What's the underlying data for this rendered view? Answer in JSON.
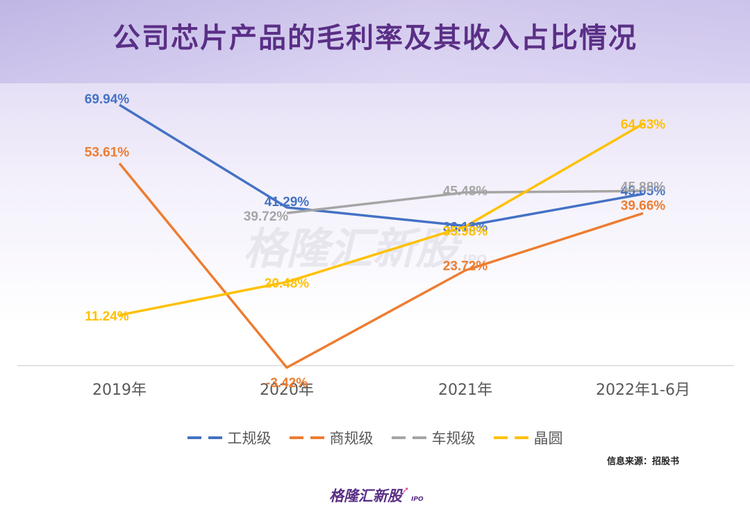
{
  "title": "公司芯片产品的毛利率及其收入占比情况",
  "watermark": {
    "text": "格隆汇新股",
    "ipo": "IPO"
  },
  "source": "信息来源：招股书",
  "logo": {
    "text": "格隆汇新股",
    "ipo": "IPO"
  },
  "chart_data": {
    "type": "line",
    "title": "公司芯片产品的毛利率及其收入占比情况",
    "categories": [
      "2019年",
      "2020年",
      "2021年",
      "2022年1-6月"
    ],
    "ylim": [
      -5,
      75
    ],
    "grid": false,
    "legend_position": "bottom",
    "series": [
      {
        "name": "工规级",
        "color": "#4472c4",
        "values": [
          69.94,
          41.29,
          36.13,
          45.05
        ],
        "labels": [
          "69.94%",
          "41.29%",
          "36.13%",
          "45.05%"
        ]
      },
      {
        "name": "商规级",
        "color": "#ed7d31",
        "values": [
          53.61,
          -3.42,
          23.72,
          39.66
        ],
        "labels": [
          "53.61%",
          "-3.42%",
          "23.72%",
          "39.66%"
        ]
      },
      {
        "name": "车规级",
        "color": "#a5a5a5",
        "values": [
          null,
          39.72,
          45.48,
          45.88
        ],
        "labels": [
          null,
          "39.72%",
          "45.48%",
          "45.88%"
        ]
      },
      {
        "name": "晶圆",
        "color": "#ffc000",
        "values": [
          11.24,
          20.48,
          35.98,
          64.63
        ],
        "labels": [
          "11.24%",
          "20.48%",
          "35.98%",
          "64.63%"
        ]
      }
    ]
  }
}
